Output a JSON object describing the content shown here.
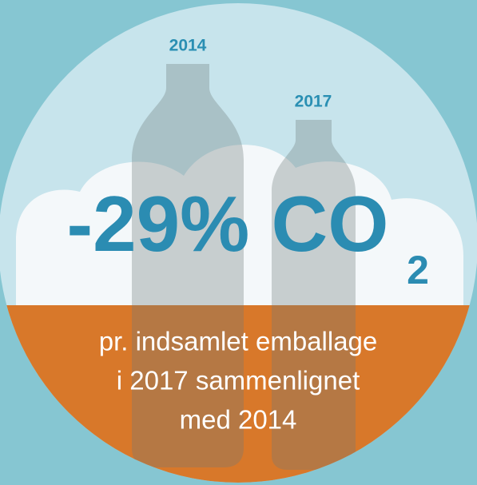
{
  "labels": {
    "left_year": "2014",
    "right_year": "2017"
  },
  "headline": {
    "main": "-29% CO",
    "subscript": "2"
  },
  "caption": {
    "lines": [
      "pr. indsamlet emballage",
      "i 2017 sammenlignet",
      "med 2014"
    ]
  }
}
